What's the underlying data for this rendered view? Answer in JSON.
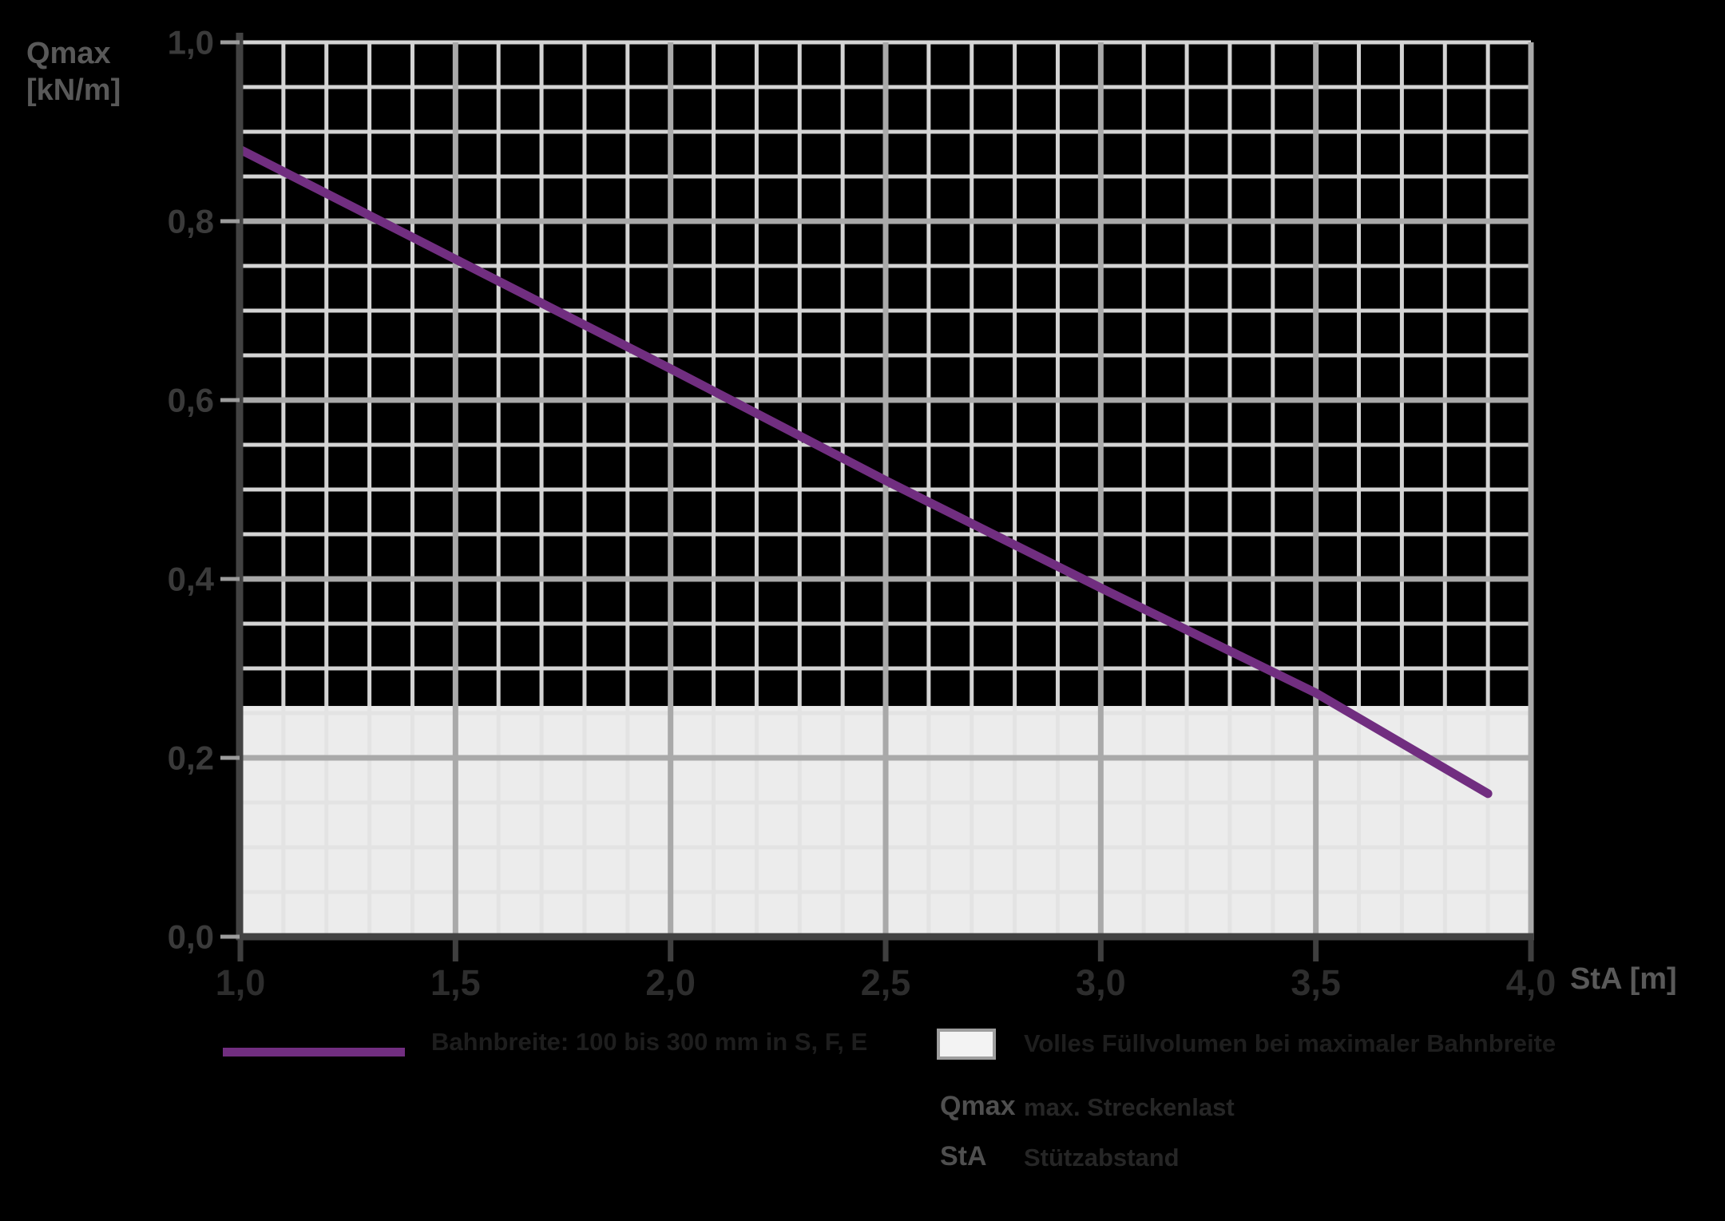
{
  "page": {
    "background": "#000000"
  },
  "axes_titles": {
    "y_line1": "Qmax",
    "y_line2": "[kN/m]",
    "x": "StA [m]"
  },
  "chart_data": {
    "type": "line",
    "title": "",
    "x_axis": {
      "label": "StA [m]",
      "min": 1.0,
      "max": 4.0,
      "tick_step": 0.5,
      "minor_grid_step": 0.1,
      "tick_labels": [
        "1,0",
        "1,5",
        "2,0",
        "2,5",
        "3,0",
        "3,5",
        "4,0"
      ]
    },
    "y_axis": {
      "label": "Qmax [kN/m]",
      "min": 0.0,
      "max": 1.0,
      "tick_step": 0.2,
      "minor_grid_step": 0.05,
      "tick_labels": [
        "0,0",
        "0,2",
        "0,4",
        "0,6",
        "0,8",
        "1,0"
      ]
    },
    "series": [
      {
        "name": "Bahnbreite: 100 bis 300 mm in S, F, E",
        "color": "#712e80",
        "line_width": 11,
        "points": [
          [
            1.0,
            0.88
          ],
          [
            1.5,
            0.7575
          ],
          [
            2.0,
            0.635
          ],
          [
            2.5,
            0.51
          ],
          [
            3.0,
            0.39
          ],
          [
            3.5,
            0.2725
          ],
          [
            3.9,
            0.16
          ]
        ]
      }
    ],
    "shaded_region": {
      "label": "Volles Füllvolumen bei maximaler Bahnbreite",
      "from": 0.0,
      "to": 0.258,
      "color": "#ececec"
    },
    "grid": {
      "minor_color": "#d4d4d4",
      "major_color": "#a9a9a9",
      "minor_in_shade_color": "#e3e3e3",
      "axis_color": "#424242",
      "y_tick_color": "#9c9c9c",
      "x_tick_color": "#3f3f3f",
      "y_tick_label_color": "#3a3a3a",
      "x_tick_label_color": "#2d2d2d"
    }
  },
  "legend": {
    "series_label": "Bahnbreite: 100 bis 300 mm in S, F, E",
    "area_label": "Volles Füllvolumen bei maximaler Bahnbreite",
    "swatch_fill": "#f3f3f3",
    "swatch_border": "#9e9e9e",
    "definitions": [
      {
        "term": "Qmax",
        "definition": "max. Streckenlast"
      },
      {
        "term": "StA",
        "definition": "Stützabstand"
      }
    ]
  }
}
